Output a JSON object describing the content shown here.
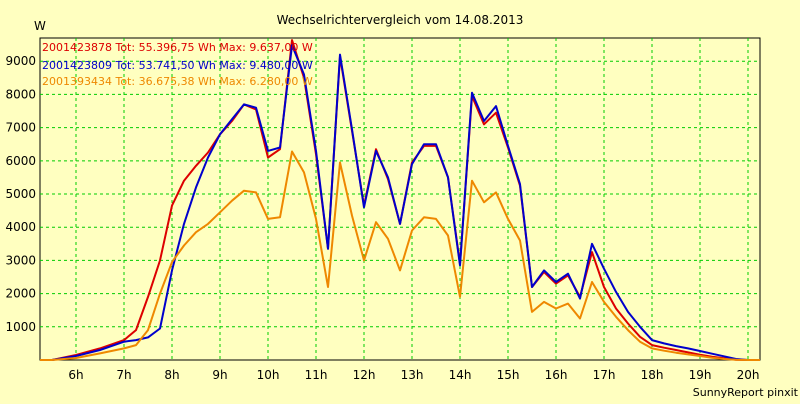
{
  "chart_data": {
    "type": "line",
    "title": "Wechselrichtervergleich vom 14.08.2013",
    "ylabel": "W",
    "xlabel": "",
    "footer": "SunnyReport pinxit",
    "xlim": [
      5.25,
      20.25
    ],
    "ylim": [
      0,
      9700
    ],
    "grid": true,
    "x_ticks": [
      6,
      7,
      8,
      9,
      10,
      11,
      12,
      13,
      14,
      15,
      16,
      17,
      18,
      19,
      20
    ],
    "x_tick_labels": [
      "6h",
      "7h",
      "8h",
      "9h",
      "10h",
      "11h",
      "12h",
      "13h",
      "14h",
      "15h",
      "16h",
      "17h",
      "18h",
      "19h",
      "20h"
    ],
    "y_ticks": [
      1000,
      2000,
      3000,
      4000,
      5000,
      6000,
      7000,
      8000,
      9000
    ],
    "y_tick_labels": [
      "1000",
      "2000",
      "3000",
      "4000",
      "5000",
      "6000",
      "7000",
      "8000",
      "9000"
    ],
    "legend_position": "top-left",
    "series": [
      {
        "name": "2001423878",
        "legend": "2001423878 Tot: 55.396,75 Wh Max: 9.637,00 W",
        "color": "#dd0000",
        "x": [
          5.25,
          5.5,
          6.0,
          6.5,
          7.0,
          7.25,
          7.5,
          7.75,
          8.0,
          8.25,
          8.5,
          8.75,
          9.0,
          9.25,
          9.5,
          9.75,
          10.0,
          10.25,
          10.5,
          10.75,
          11.0,
          11.25,
          11.5,
          11.75,
          12.0,
          12.25,
          12.5,
          12.75,
          13.0,
          13.25,
          13.5,
          13.75,
          14.0,
          14.25,
          14.5,
          14.75,
          15.0,
          15.25,
          15.5,
          15.75,
          16.0,
          16.25,
          16.5,
          16.75,
          17.0,
          17.25,
          17.5,
          17.75,
          18.0,
          18.25,
          18.5,
          18.75,
          19.0,
          19.25,
          19.5,
          19.75,
          20.0,
          20.25
        ],
        "y": [
          0,
          0,
          150,
          350,
          600,
          900,
          1900,
          3000,
          4650,
          5400,
          5850,
          6250,
          6800,
          7200,
          7700,
          7550,
          6100,
          6350,
          9637,
          8500,
          6200,
          3350,
          9150,
          6900,
          4650,
          6350,
          5450,
          4100,
          5950,
          6450,
          6450,
          5500,
          2900,
          7950,
          7100,
          7450,
          6400,
          5250,
          2200,
          2650,
          2300,
          2550,
          1900,
          3250,
          2200,
          1550,
          1100,
          700,
          450,
          370,
          300,
          230,
          160,
          100,
          50,
          10,
          0,
          0
        ]
      },
      {
        "name": "2001423809",
        "legend": "2001423809 Tot: 53.741,50 Wh Max: 9.480,00 W",
        "color": "#0000cc",
        "x": [
          5.25,
          5.5,
          6.0,
          6.5,
          7.0,
          7.25,
          7.5,
          7.75,
          8.0,
          8.25,
          8.5,
          8.75,
          9.0,
          9.25,
          9.5,
          9.75,
          10.0,
          10.25,
          10.5,
          10.75,
          11.0,
          11.25,
          11.5,
          11.75,
          12.0,
          12.25,
          12.5,
          12.75,
          13.0,
          13.25,
          13.5,
          13.75,
          14.0,
          14.25,
          14.5,
          14.75,
          15.0,
          15.25,
          15.5,
          15.75,
          16.0,
          16.25,
          16.5,
          16.75,
          17.0,
          17.25,
          17.5,
          17.75,
          18.0,
          18.25,
          18.5,
          18.75,
          19.0,
          19.25,
          19.5,
          19.75,
          20.0,
          20.25
        ],
        "y": [
          0,
          0,
          120,
          300,
          550,
          600,
          680,
          950,
          2700,
          4100,
          5200,
          6100,
          6800,
          7250,
          7700,
          7600,
          6300,
          6400,
          9480,
          8600,
          6300,
          3350,
          9200,
          6950,
          4600,
          6300,
          5500,
          4100,
          5900,
          6500,
          6500,
          5500,
          2850,
          8050,
          7200,
          7650,
          6450,
          5300,
          2200,
          2700,
          2350,
          2600,
          1850,
          3500,
          2750,
          2050,
          1450,
          1000,
          600,
          500,
          420,
          350,
          270,
          190,
          110,
          30,
          0,
          0
        ]
      },
      {
        "name": "2001393434",
        "legend": "2001393434 Tot: 36.675,38 Wh Max: 6.280,00 W",
        "color": "#ee8800",
        "x": [
          5.25,
          5.5,
          6.0,
          6.5,
          7.0,
          7.25,
          7.5,
          7.75,
          8.0,
          8.25,
          8.5,
          8.75,
          9.0,
          9.25,
          9.5,
          9.75,
          10.0,
          10.25,
          10.5,
          10.75,
          11.0,
          11.25,
          11.5,
          11.75,
          12.0,
          12.25,
          12.5,
          12.75,
          13.0,
          13.25,
          13.5,
          13.75,
          14.0,
          14.25,
          14.5,
          14.75,
          15.0,
          15.25,
          15.5,
          15.75,
          16.0,
          16.25,
          16.5,
          16.75,
          17.0,
          17.25,
          17.5,
          17.75,
          18.0,
          18.25,
          18.5,
          18.75,
          19.0,
          19.25,
          19.5,
          19.75,
          20.0,
          20.25
        ],
        "y": [
          0,
          0,
          60,
          200,
          350,
          450,
          900,
          2000,
          2950,
          3450,
          3850,
          4100,
          4450,
          4800,
          5100,
          5050,
          4250,
          4300,
          6280,
          5650,
          4250,
          2200,
          5950,
          4350,
          3000,
          4150,
          3650,
          2700,
          3900,
          4300,
          4250,
          3750,
          1900,
          5400,
          4750,
          5050,
          4250,
          3600,
          1450,
          1750,
          1550,
          1700,
          1250,
          2350,
          1750,
          1300,
          900,
          550,
          350,
          280,
          220,
          170,
          120,
          70,
          30,
          5,
          0,
          0
        ]
      }
    ]
  }
}
